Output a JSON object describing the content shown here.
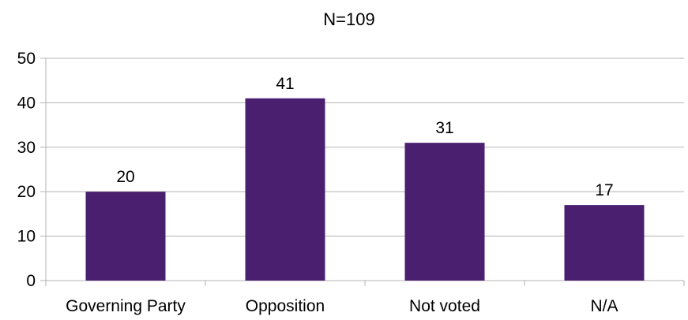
{
  "chart_data": {
    "type": "bar",
    "title": "N=109",
    "categories": [
      "Governing Party",
      "Opposition",
      "Not voted",
      "N/A"
    ],
    "values": [
      20,
      41,
      31,
      17
    ],
    "xlabel": "",
    "ylabel": "",
    "ylim": [
      0,
      50
    ],
    "yticks": [
      0,
      10,
      20,
      30,
      40,
      50
    ],
    "grid": true,
    "legend": "none",
    "bar_color": "#4b1f6f",
    "grid_color": "#b3b3b3"
  }
}
